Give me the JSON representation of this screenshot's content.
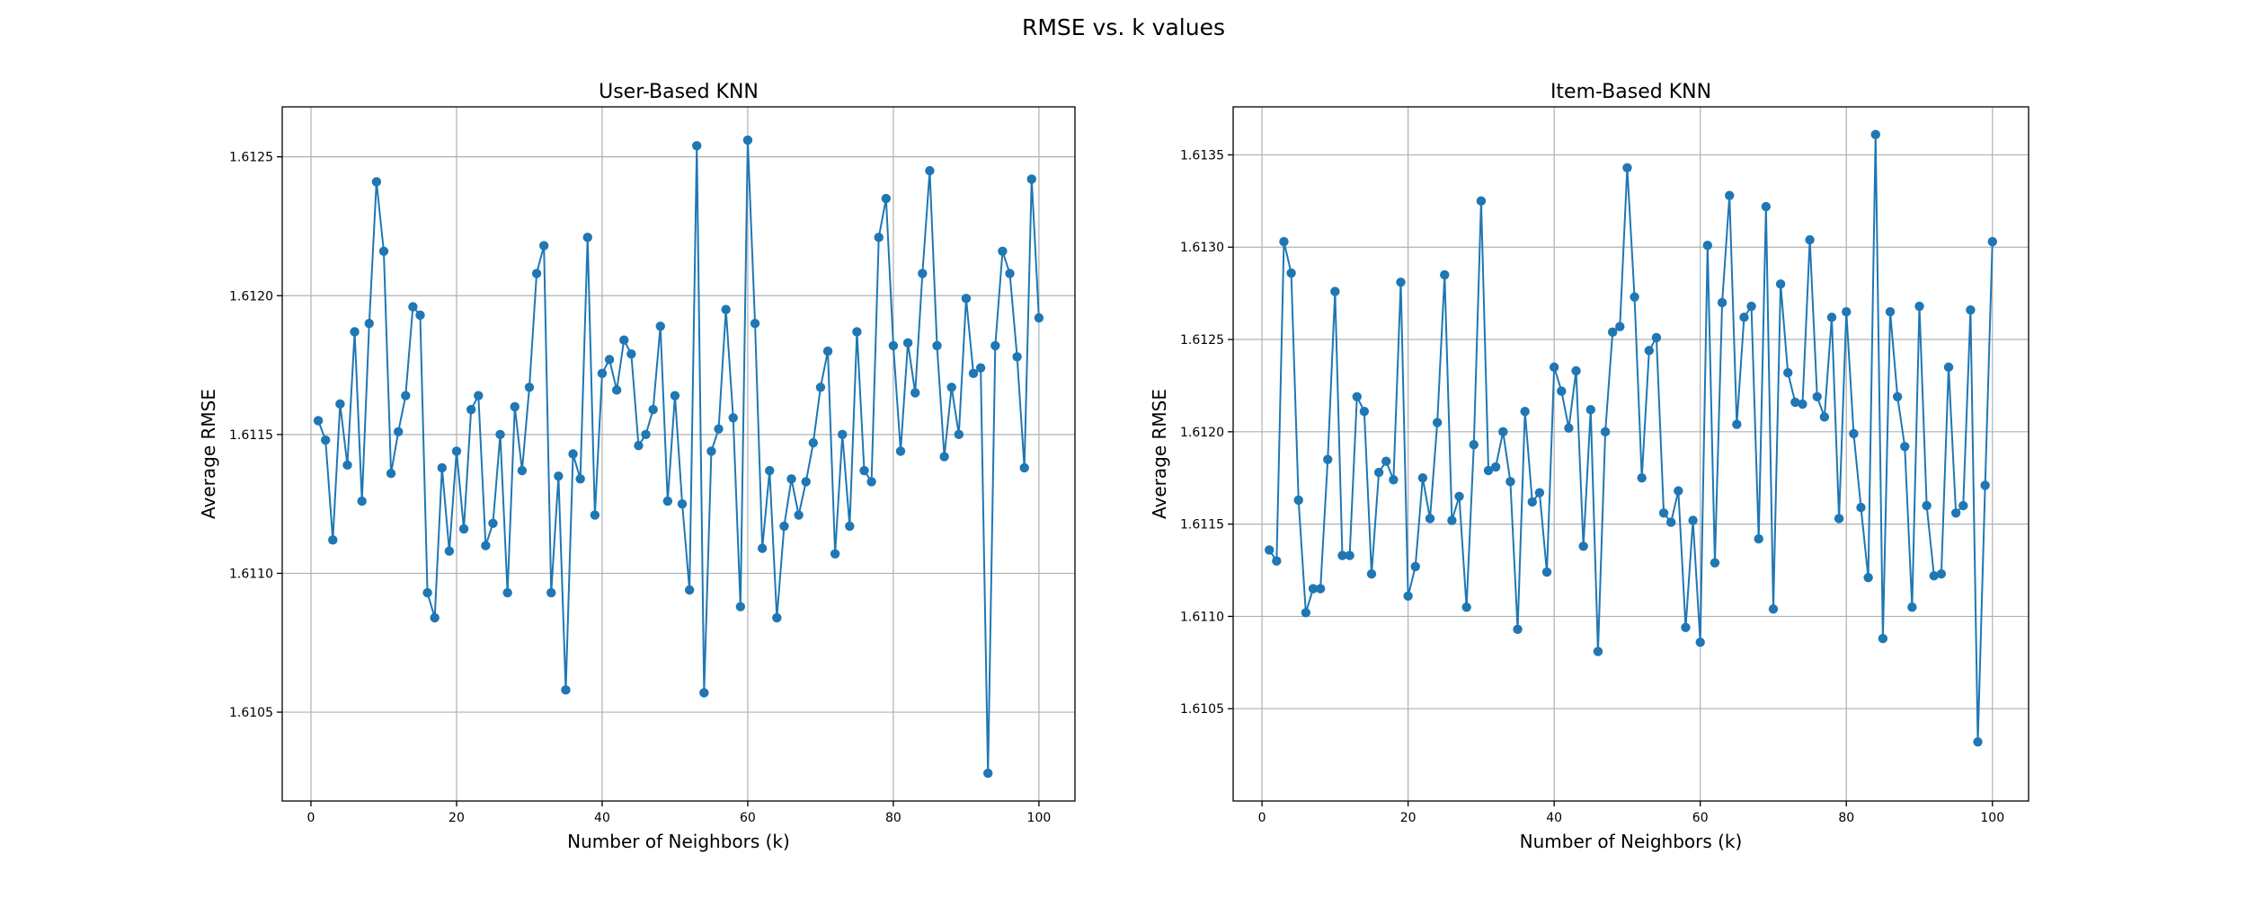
{
  "figure": {
    "title": "RMSE vs. k values"
  },
  "style": {
    "series_color": "#1f77b4",
    "grid_color": "#b0b0b0"
  },
  "chart_data": [
    {
      "type": "line",
      "markers": "circle",
      "title": "User-Based KNN",
      "xlabel": "Number of Neighbors (k)",
      "ylabel": "Average RMSE",
      "grid": true,
      "xlim": [
        -3.95,
        104.95
      ],
      "ylim": [
        1.61018,
        1.61268
      ],
      "xticks": [
        0,
        20,
        40,
        60,
        80,
        100
      ],
      "xtick_labels": [
        "0",
        "20",
        "40",
        "60",
        "80",
        "100"
      ],
      "yticks": [
        1.6105,
        1.611,
        1.6115,
        1.612,
        1.6125
      ],
      "ytick_labels": [
        "1.6105",
        "1.6110",
        "1.6115",
        "1.6120",
        "1.6125"
      ],
      "x": [
        1,
        2,
        3,
        4,
        5,
        6,
        7,
        8,
        9,
        10,
        11,
        12,
        13,
        14,
        15,
        16,
        17,
        18,
        19,
        20,
        21,
        22,
        23,
        24,
        25,
        26,
        27,
        28,
        29,
        30,
        31,
        32,
        33,
        34,
        35,
        36,
        37,
        38,
        39,
        40,
        41,
        42,
        43,
        44,
        45,
        46,
        47,
        48,
        49,
        50,
        51,
        52,
        53,
        54,
        55,
        56,
        57,
        58,
        59,
        60,
        61,
        62,
        63,
        64,
        65,
        66,
        67,
        68,
        69,
        70,
        71,
        72,
        73,
        74,
        75,
        76,
        77,
        78,
        79,
        80,
        81,
        82,
        83,
        84,
        85,
        86,
        87,
        88,
        89,
        90,
        91,
        92,
        93,
        94,
        95,
        96,
        97,
        98,
        99,
        100
      ],
      "y": [
        1.61155,
        1.61148,
        1.61112,
        1.61161,
        1.61139,
        1.61187,
        1.61126,
        1.6119,
        1.61241,
        1.61216,
        1.61136,
        1.61151,
        1.61164,
        1.61196,
        1.61193,
        1.61093,
        1.61084,
        1.61138,
        1.61108,
        1.61144,
        1.61116,
        1.61159,
        1.61164,
        1.6111,
        1.61118,
        1.6115,
        1.61093,
        1.6116,
        1.61137,
        1.61167,
        1.61208,
        1.61218,
        1.61093,
        1.61135,
        1.61058,
        1.61143,
        1.61134,
        1.61221,
        1.61121,
        1.61172,
        1.61177,
        1.61166,
        1.61184,
        1.61179,
        1.61146,
        1.6115,
        1.61159,
        1.61189,
        1.61126,
        1.61164,
        1.61125,
        1.61094,
        1.61254,
        1.61057,
        1.61144,
        1.61152,
        1.61195,
        1.61156,
        1.61088,
        1.61256,
        1.6119,
        1.61109,
        1.61137,
        1.61084,
        1.61117,
        1.61134,
        1.61121,
        1.61133,
        1.61147,
        1.61167,
        1.6118,
        1.61107,
        1.6115,
        1.61117,
        1.61187,
        1.61137,
        1.61133,
        1.61221,
        1.61235,
        1.61182,
        1.61144,
        1.61183,
        1.61165,
        1.61208,
        1.61245,
        1.61182,
        1.61142,
        1.61167,
        1.6115,
        1.61199,
        1.61172,
        1.61174,
        1.61028,
        1.61182,
        1.61216,
        1.61208,
        1.61178,
        1.61138,
        1.61242,
        1.61192
      ]
    },
    {
      "type": "line",
      "markers": "circle",
      "title": "Item-Based KNN",
      "xlabel": "Number of Neighbors (k)",
      "ylabel": "Average RMSE",
      "grid": true,
      "xlim": [
        -3.95,
        104.95
      ],
      "ylim": [
        1.61,
        1.61376
      ],
      "xticks": [
        0,
        20,
        40,
        60,
        80,
        100
      ],
      "xtick_labels": [
        "0",
        "20",
        "40",
        "60",
        "80",
        "100"
      ],
      "yticks": [
        1.6105,
        1.611,
        1.6115,
        1.612,
        1.6125,
        1.613,
        1.6135
      ],
      "ytick_labels": [
        "1.6105",
        "1.6110",
        "1.6115",
        "1.6120",
        "1.6125",
        "1.6130",
        "1.6135"
      ],
      "x": [
        1,
        2,
        3,
        4,
        5,
        6,
        7,
        8,
        9,
        10,
        11,
        12,
        13,
        14,
        15,
        16,
        17,
        18,
        19,
        20,
        21,
        22,
        23,
        24,
        25,
        26,
        27,
        28,
        29,
        30,
        31,
        32,
        33,
        34,
        35,
        36,
        37,
        38,
        39,
        40,
        41,
        42,
        43,
        44,
        45,
        46,
        47,
        48,
        49,
        50,
        51,
        52,
        53,
        54,
        55,
        56,
        57,
        58,
        59,
        60,
        61,
        62,
        63,
        64,
        65,
        66,
        67,
        68,
        69,
        70,
        71,
        72,
        73,
        74,
        75,
        76,
        77,
        78,
        79,
        80,
        81,
        82,
        83,
        84,
        85,
        86,
        87,
        88,
        89,
        90,
        91,
        92,
        93,
        94,
        95,
        96,
        97,
        98,
        99,
        100
      ],
      "y": [
        1.61136,
        1.6113,
        1.61303,
        1.61286,
        1.61163,
        1.61102,
        1.61115,
        1.61115,
        1.61185,
        1.61276,
        1.61133,
        1.61133,
        1.61219,
        1.61211,
        1.61123,
        1.61178,
        1.61184,
        1.61174,
        1.61281,
        1.61111,
        1.61127,
        1.61175,
        1.61153,
        1.61205,
        1.61285,
        1.61152,
        1.61165,
        1.61105,
        1.61193,
        1.61325,
        1.61179,
        1.61181,
        1.612,
        1.61173,
        1.61093,
        1.61211,
        1.61162,
        1.61167,
        1.61124,
        1.61235,
        1.61222,
        1.61202,
        1.61233,
        1.61138,
        1.61212,
        1.61081,
        1.612,
        1.61254,
        1.61257,
        1.61343,
        1.61273,
        1.61175,
        1.61244,
        1.61251,
        1.61156,
        1.61151,
        1.61168,
        1.61094,
        1.61152,
        1.61086,
        1.61301,
        1.61129,
        1.6127,
        1.61328,
        1.61204,
        1.61262,
        1.61268,
        1.61142,
        1.61322,
        1.61104,
        1.6128,
        1.61232,
        1.61216,
        1.61215,
        1.61304,
        1.61219,
        1.61208,
        1.61262,
        1.61153,
        1.61265,
        1.61199,
        1.61159,
        1.61121,
        1.61361,
        1.61088,
        1.61265,
        1.61219,
        1.61192,
        1.61105,
        1.61268,
        1.6116,
        1.61122,
        1.61123,
        1.61235,
        1.61156,
        1.6116,
        1.61266,
        1.61032,
        1.61171,
        1.61303
      ]
    }
  ]
}
